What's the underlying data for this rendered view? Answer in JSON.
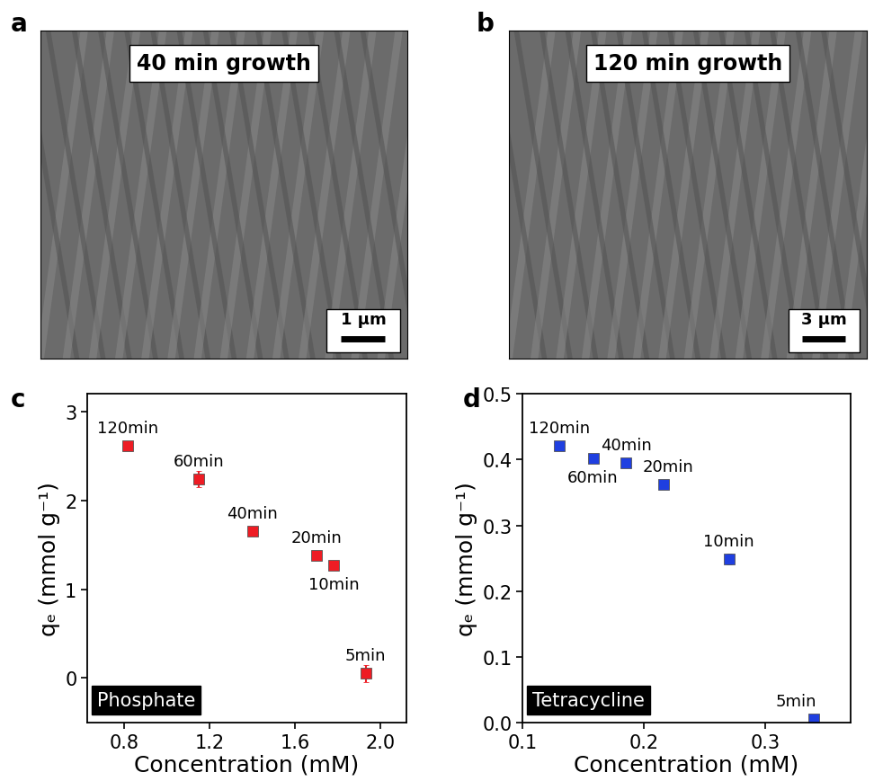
{
  "images": [
    {
      "panel_label": "a",
      "caption": "40 min growth",
      "scale_bar": "1 µm"
    },
    {
      "panel_label": "b",
      "caption": "120 min growth",
      "scale_bar": "3 µm"
    }
  ],
  "chart_data": [
    {
      "type": "scatter",
      "panel_label": "c",
      "tag": "Phosphate",
      "x_label": "Concentration (mM)",
      "y_label": "qₑ (mmol g⁻¹)",
      "x": [
        0.82,
        1.15,
        1.4,
        1.7,
        1.78,
        1.93
      ],
      "values": [
        2.62,
        2.24,
        1.65,
        1.38,
        1.27,
        0.05
      ],
      "errors": [
        0.03,
        0.09,
        0.03,
        0.05,
        0.03,
        0.1
      ],
      "point_labels": [
        "120min",
        "60min",
        "40min",
        "20min",
        "10min",
        "5min"
      ],
      "color": "#ee1c24",
      "marker": "square",
      "xlim": [
        0.63,
        2.12
      ],
      "xticks": [
        0.8,
        1.2,
        1.6,
        2.0
      ],
      "ylim": [
        -0.5,
        3.2
      ],
      "yticks": [
        0,
        1,
        2,
        3
      ]
    },
    {
      "type": "scatter",
      "panel_label": "d",
      "tag": "Tetracycline",
      "x_label": "Concentration (mM)",
      "y_label": "qₑ (mmol g⁻¹)",
      "x": [
        0.13,
        0.158,
        0.185,
        0.216,
        0.27,
        0.34
      ],
      "values": [
        0.421,
        0.402,
        0.395,
        0.362,
        0.249,
        0.005
      ],
      "errors": [
        0.004,
        0.004,
        0.004,
        0.004,
        0.008,
        0.003
      ],
      "point_labels": [
        "120min",
        "60min",
        "40min",
        "20min",
        "10min",
        "5min"
      ],
      "color": "#1f3fe0",
      "marker": "square",
      "xlim": [
        0.1,
        0.37
      ],
      "xticks": [
        0.1,
        0.2,
        0.3
      ],
      "ylim": [
        0.0,
        0.5
      ],
      "yticks": [
        0.0,
        0.1,
        0.2,
        0.3,
        0.4,
        0.5
      ]
    }
  ]
}
